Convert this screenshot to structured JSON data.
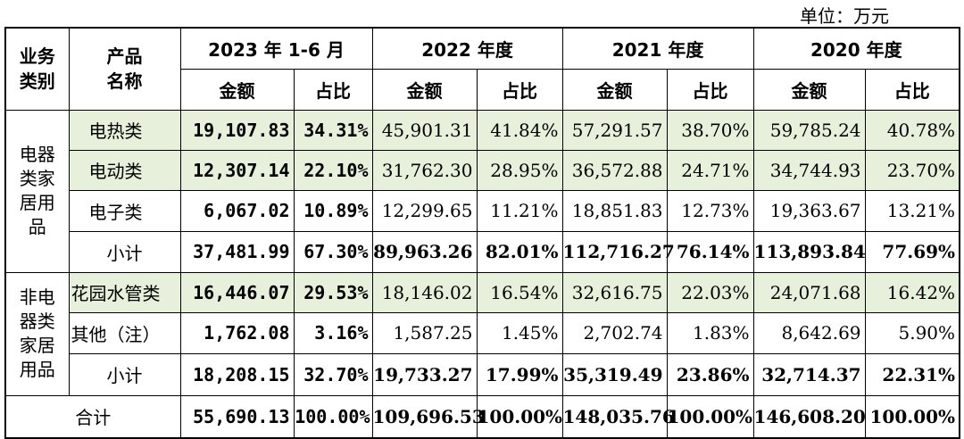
{
  "unit_label": "单位：万元",
  "headers": {
    "business_type": "业务\n类别",
    "product_name": "产品\n名称",
    "periods": [
      "2023 年 1-6 月",
      "2022 年度",
      "2021 年度",
      "2020 年度"
    ],
    "amount": "金额",
    "ratio": "占比"
  },
  "groups": [
    {
      "category": "电器\n类家\n居用\n品",
      "rows": [
        {
          "name": "电热类",
          "values": [
            "19,107.83",
            "34.31%",
            "45,901.31",
            "41.84%",
            "57,291.57",
            "38.70%",
            "59,785.24",
            "40.78%"
          ],
          "highlight": true
        },
        {
          "name": "电动类",
          "values": [
            "12,307.14",
            "22.10%",
            "31,762.30",
            "28.95%",
            "36,572.88",
            "24.71%",
            "34,744.93",
            "23.70%"
          ],
          "highlight": true
        },
        {
          "name": "电子类",
          "values": [
            "6,067.02",
            "10.89%",
            "12,299.65",
            "11.21%",
            "18,851.83",
            "12.73%",
            "19,363.67",
            "13.21%"
          ],
          "highlight": false
        },
        {
          "name": "小计",
          "values": [
            "37,481.99",
            "67.30%",
            "89,963.26",
            "82.01%",
            "112,716.27",
            "76.14%",
            "113,893.84",
            "77.69%"
          ],
          "subtotal": true
        }
      ]
    },
    {
      "category": "非电\n器类\n家居\n用品",
      "rows": [
        {
          "name": "花园水管类",
          "values": [
            "16,446.07",
            "29.53%",
            "18,146.02",
            "16.54%",
            "32,616.75",
            "22.03%",
            "24,071.68",
            "16.42%"
          ],
          "highlight": true
        },
        {
          "name": "其他（注）",
          "values": [
            "1,762.08",
            "3.16%",
            "1,587.25",
            "1.45%",
            "2,702.74",
            "1.83%",
            "8,642.69",
            "5.90%"
          ],
          "highlight": false
        },
        {
          "name": "小计",
          "values": [
            "18,208.15",
            "32.70%",
            "19,733.27",
            "17.99%",
            "35,319.49",
            "23.86%",
            "32,714.37",
            "22.31%"
          ],
          "subtotal": true
        }
      ]
    }
  ],
  "total": {
    "name": "合计",
    "values": [
      "55,690.13",
      "100.00%",
      "109,696.53",
      "100.00%",
      "148,035.76",
      "100.00%",
      "146,608.20",
      "100.00%"
    ]
  }
}
